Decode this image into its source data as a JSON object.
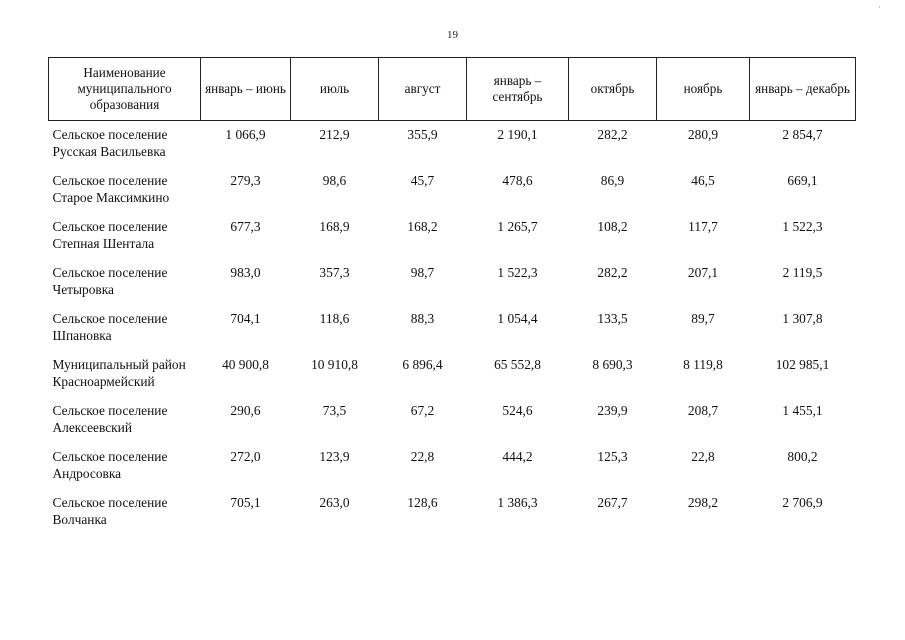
{
  "page": {
    "number": "19"
  },
  "table": {
    "headers": [
      "Наименование муниципального образования",
      "январь – июнь",
      "июль",
      "август",
      "январь – сентябрь",
      "октябрь",
      "ноябрь",
      "январь – декабрь"
    ],
    "rows": [
      {
        "name": "Сельское поселение Русская Васильевка",
        "values": [
          "1 066,9",
          "212,9",
          "355,9",
          "2 190,1",
          "282,2",
          "280,9",
          "2 854,7"
        ]
      },
      {
        "name": "Сельское поселение Старое Максимкино",
        "values": [
          "279,3",
          "98,6",
          "45,7",
          "478,6",
          "86,9",
          "46,5",
          "669,1"
        ]
      },
      {
        "name": "Сельское поселение Степная Шентала",
        "values": [
          "677,3",
          "168,9",
          "168,2",
          "1 265,7",
          "108,2",
          "117,7",
          "1 522,3"
        ]
      },
      {
        "name": "Сельское поселение Четыровка",
        "values": [
          "983,0",
          "357,3",
          "98,7",
          "1 522,3",
          "282,2",
          "207,1",
          "2 119,5"
        ]
      },
      {
        "name": "Сельское поселение Шпановка",
        "values": [
          "704,1",
          "118,6",
          "88,3",
          "1 054,4",
          "133,5",
          "89,7",
          "1 307,8"
        ]
      },
      {
        "name": "Муниципальный район Красноармейский",
        "values": [
          "40 900,8",
          "10 910,8",
          "6 896,4",
          "65 552,8",
          "8 690,3",
          "8 119,8",
          "102 985,1"
        ]
      },
      {
        "name": "Сельское поселение Алексеевский",
        "values": [
          "290,6",
          "73,5",
          "67,2",
          "524,6",
          "239,9",
          "208,7",
          "1 455,1"
        ]
      },
      {
        "name": "Сельское поселение Андросовка",
        "values": [
          "272,0",
          "123,9",
          "22,8",
          "444,2",
          "125,3",
          "22,8",
          "800,2"
        ]
      },
      {
        "name": "Сельское поселение Волчанка",
        "values": [
          "705,1",
          "263,0",
          "128,6",
          "1 386,3",
          "267,7",
          "298,2",
          "2 706,9"
        ]
      }
    ]
  }
}
